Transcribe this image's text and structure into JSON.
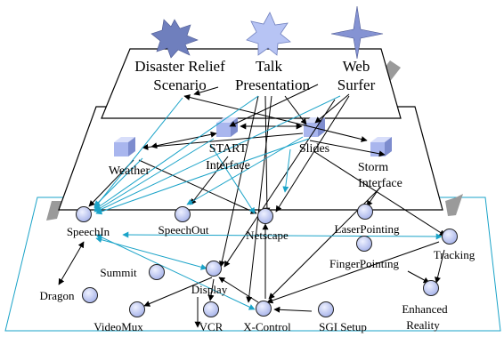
{
  "top_layer": {
    "apps": [
      {
        "id": "disaster",
        "lines": [
          "Disaster Relief",
          "Scenario"
        ]
      },
      {
        "id": "talk",
        "lines": [
          "Talk",
          "Presentation"
        ]
      },
      {
        "id": "web",
        "lines": [
          "Web",
          "Surfer"
        ]
      }
    ]
  },
  "middle_layer": {
    "nodes": [
      {
        "id": "weather",
        "lines": [
          "Weather"
        ]
      },
      {
        "id": "start",
        "lines": [
          "START",
          "Interface"
        ]
      },
      {
        "id": "slides",
        "lines": [
          "Slides"
        ]
      },
      {
        "id": "storm",
        "lines": [
          "Storm",
          "Interface"
        ]
      }
    ]
  },
  "bottom_layer": {
    "nodes": [
      {
        "id": "speechin",
        "label": "SpeechIn"
      },
      {
        "id": "speechout",
        "label": "SpeechOut"
      },
      {
        "id": "netscape",
        "label": "Netscape"
      },
      {
        "id": "laserpointing",
        "label": "LaserPointing"
      },
      {
        "id": "tracking",
        "label": "Tracking"
      },
      {
        "id": "summit",
        "label": "Summit"
      },
      {
        "id": "display",
        "label": "Display"
      },
      {
        "id": "fingerpointing",
        "label": "FingerPointing"
      },
      {
        "id": "dragon",
        "label": "Dragon"
      },
      {
        "id": "enhanced",
        "lines": [
          "Enhanced",
          "Reality"
        ]
      },
      {
        "id": "videomux",
        "label": "VideoMux"
      },
      {
        "id": "vcr",
        "label": "VCR"
      },
      {
        "id": "xcontrol",
        "label": "X-Control"
      },
      {
        "id": "sgisetup",
        "label": "SGI Setup"
      }
    ]
  },
  "colors": {
    "black_edge": "#000000",
    "cyan_edge": "#1aa3c8",
    "node_fill": "#c5cdf2",
    "cube_face": "#a9b6ee",
    "star_fill": "#6f7fbd",
    "pillar": "#9a9a9a",
    "plane_edge": "#1aa3c8"
  },
  "icons": [
    "starburst-icon",
    "star-icon",
    "cross-star-icon",
    "cube-icon",
    "circle-node-icon"
  ]
}
